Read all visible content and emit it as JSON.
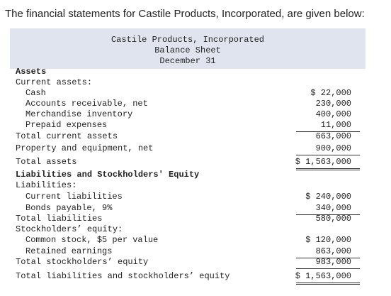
{
  "intro": "The financial statements for Castile Products, Incorporated, are given below:",
  "statement": {
    "header": {
      "company": "Castile Products, Incorporated",
      "title": "Balance Sheet",
      "date": "December 31"
    },
    "rows": [
      {
        "label": "Assets"
      },
      {
        "label": "Current assets:"
      },
      {
        "label": "Cash",
        "amount": "$ 22,000"
      },
      {
        "label": "Accounts receivable, net",
        "amount": "230,000"
      },
      {
        "label": "Merchandise inventory",
        "amount": "400,000"
      },
      {
        "label": "Prepaid expenses",
        "amount": "11,000"
      },
      {
        "label": "Total current assets",
        "amount": "663,000"
      },
      {
        "label": "Property and equipment, net",
        "amount": "900,000"
      },
      {
        "label": "Total assets",
        "amount": "$ 1,563,000"
      },
      {
        "label": "Liabilities and Stockholders' Equity"
      },
      {
        "label": "Liabilities:"
      },
      {
        "label": "Current liabilities",
        "amount": "$ 240,000"
      },
      {
        "label": "Bonds payable, 9%",
        "amount": "340,000"
      },
      {
        "label": "Total liabilities",
        "amount": "580,000"
      },
      {
        "label": "Stockholders’ equity:"
      },
      {
        "label": "Common stock, $5 per value",
        "amount": "$ 120,000"
      },
      {
        "label": "Retained earnings",
        "amount": "863,000"
      },
      {
        "label": "Total stockholders’ equity",
        "amount": "983,000"
      },
      {
        "label": "Total liabilities and stockholders’ equity",
        "amount": "$ 1,563,000"
      }
    ]
  }
}
